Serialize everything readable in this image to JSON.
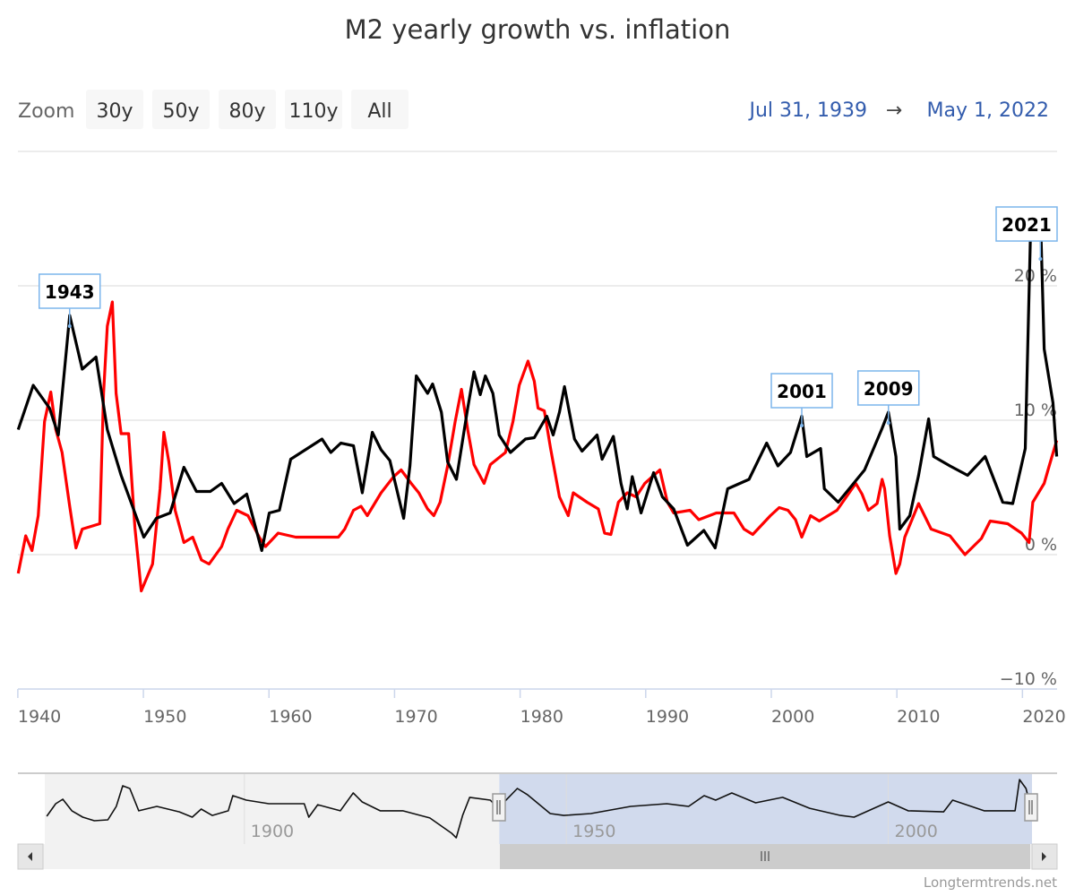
{
  "title": "M2 yearly growth vs. inflation",
  "zoom": {
    "label": "Zoom",
    "buttons": [
      "30y",
      "50y",
      "80y",
      "110y",
      "All"
    ]
  },
  "range": {
    "from": "Jul 31, 1939",
    "arrow": "→",
    "to": "May 1, 2022"
  },
  "credit": "Longtermtrends.net",
  "colors": {
    "m2": "#000000",
    "inflation": "#ff0000",
    "navigator_mask": "#ccd6eb",
    "annotation_border": "#7cb5ec"
  },
  "chart_data": {
    "type": "line",
    "title": "M2 yearly growth vs. inflation",
    "xlim": [
      1939.58,
      2022.33
    ],
    "ylim": [
      -10,
      28
    ],
    "yticks": [
      -10,
      0,
      10,
      20
    ],
    "ytick_labels": [
      "−10 %",
      "0 %",
      "10 %",
      "20 %"
    ],
    "xticks": [
      1940,
      1950,
      1960,
      1970,
      1980,
      1990,
      2000,
      2010,
      2020
    ],
    "xtick_labels": [
      "1940",
      "1950",
      "1960",
      "1970",
      "1980",
      "1990",
      "2000",
      "2010",
      "2020"
    ],
    "grid": true,
    "series": [
      {
        "name": "M2 yearly growth",
        "color": "#000000",
        "points": [
          [
            1939.6,
            9.3
          ],
          [
            1940.8,
            12.6
          ],
          [
            1942.1,
            10.9
          ],
          [
            1942.8,
            8.9
          ],
          [
            1943.7,
            17.8
          ],
          [
            1944.7,
            13.8
          ],
          [
            1945.8,
            14.7
          ],
          [
            1946.7,
            9.3
          ],
          [
            1947.8,
            5.9
          ],
          [
            1949.6,
            1.3
          ],
          [
            1950.6,
            2.7
          ],
          [
            1951.7,
            3.1
          ],
          [
            1952.8,
            6.5
          ],
          [
            1953.8,
            4.7
          ],
          [
            1954.9,
            4.7
          ],
          [
            1955.8,
            5.3
          ],
          [
            1956.8,
            3.8
          ],
          [
            1957.8,
            4.5
          ],
          [
            1959.0,
            0.3
          ],
          [
            1959.6,
            3.1
          ],
          [
            1960.4,
            3.3
          ],
          [
            1961.3,
            7.1
          ],
          [
            1962.8,
            8.0
          ],
          [
            1963.8,
            8.6
          ],
          [
            1964.5,
            7.6
          ],
          [
            1965.3,
            8.3
          ],
          [
            1966.3,
            8.1
          ],
          [
            1967.0,
            4.6
          ],
          [
            1967.8,
            9.1
          ],
          [
            1968.5,
            7.8
          ],
          [
            1969.2,
            7.0
          ],
          [
            1970.3,
            2.7
          ],
          [
            1970.8,
            6.6
          ],
          [
            1971.3,
            13.3
          ],
          [
            1972.2,
            12.0
          ],
          [
            1972.6,
            12.7
          ],
          [
            1973.3,
            10.6
          ],
          [
            1973.8,
            6.9
          ],
          [
            1974.5,
            5.6
          ],
          [
            1975.4,
            10.9
          ],
          [
            1975.9,
            13.6
          ],
          [
            1976.4,
            11.9
          ],
          [
            1976.8,
            13.3
          ],
          [
            1977.4,
            12.0
          ],
          [
            1977.9,
            8.9
          ],
          [
            1978.8,
            7.6
          ],
          [
            1980.0,
            8.6
          ],
          [
            1980.7,
            8.7
          ],
          [
            1981.7,
            10.3
          ],
          [
            1982.2,
            8.9
          ],
          [
            1982.7,
            10.6
          ],
          [
            1983.1,
            12.5
          ],
          [
            1983.9,
            8.6
          ],
          [
            1984.5,
            7.7
          ],
          [
            1985.7,
            8.9
          ],
          [
            1986.1,
            7.1
          ],
          [
            1987.0,
            8.8
          ],
          [
            1987.6,
            5.3
          ],
          [
            1988.1,
            3.4
          ],
          [
            1988.5,
            5.8
          ],
          [
            1989.2,
            3.1
          ],
          [
            1990.2,
            6.1
          ],
          [
            1990.9,
            4.3
          ],
          [
            1991.8,
            3.4
          ],
          [
            1992.9,
            0.7
          ],
          [
            1994.2,
            1.8
          ],
          [
            1995.1,
            0.5
          ],
          [
            1996.1,
            4.9
          ],
          [
            1997.8,
            5.6
          ],
          [
            1999.2,
            8.3
          ],
          [
            2000.1,
            6.6
          ],
          [
            2001.1,
            7.6
          ],
          [
            2002.0,
            10.3
          ],
          [
            2002.4,
            7.3
          ],
          [
            2003.5,
            7.9
          ],
          [
            2003.8,
            4.9
          ],
          [
            2004.9,
            3.9
          ],
          [
            2007.0,
            6.3
          ],
          [
            2008.4,
            9.4
          ],
          [
            2008.9,
            10.6
          ],
          [
            2009.5,
            7.3
          ],
          [
            2009.8,
            1.9
          ],
          [
            2010.6,
            2.9
          ],
          [
            2011.3,
            5.9
          ],
          [
            2012.1,
            10.1
          ],
          [
            2012.5,
            7.3
          ],
          [
            2013.8,
            6.6
          ],
          [
            2015.2,
            5.9
          ],
          [
            2016.6,
            7.3
          ],
          [
            2018.0,
            3.9
          ],
          [
            2018.8,
            3.8
          ],
          [
            2019.8,
            7.9
          ],
          [
            2020.2,
            23.3
          ],
          [
            2021.0,
            25.3
          ],
          [
            2021.3,
            15.3
          ],
          [
            2022.0,
            11.3
          ],
          [
            2022.3,
            7.3
          ]
        ]
      },
      {
        "name": "Inflation",
        "color": "#ff0000",
        "points": [
          [
            1939.6,
            -1.4
          ],
          [
            1940.2,
            1.4
          ],
          [
            1940.7,
            0.3
          ],
          [
            1941.2,
            2.9
          ],
          [
            1941.7,
            9.9
          ],
          [
            1942.2,
            12.1
          ],
          [
            1942.6,
            9.3
          ],
          [
            1943.1,
            7.6
          ],
          [
            1943.7,
            3.6
          ],
          [
            1944.2,
            0.5
          ],
          [
            1944.7,
            1.9
          ],
          [
            1946.1,
            2.3
          ],
          [
            1946.4,
            12.0
          ],
          [
            1946.7,
            17.0
          ],
          [
            1947.1,
            18.8
          ],
          [
            1947.4,
            12.0
          ],
          [
            1947.8,
            9.0
          ],
          [
            1948.4,
            9.0
          ],
          [
            1948.9,
            2.0
          ],
          [
            1949.4,
            -2.7
          ],
          [
            1950.3,
            -0.7
          ],
          [
            1950.9,
            4.9
          ],
          [
            1951.2,
            9.1
          ],
          [
            1951.6,
            6.9
          ],
          [
            1952.1,
            3.3
          ],
          [
            1952.8,
            0.9
          ],
          [
            1953.5,
            1.3
          ],
          [
            1954.2,
            -0.4
          ],
          [
            1954.8,
            -0.7
          ],
          [
            1955.8,
            0.6
          ],
          [
            1956.3,
            1.9
          ],
          [
            1957.0,
            3.3
          ],
          [
            1957.9,
            2.9
          ],
          [
            1958.8,
            1.3
          ],
          [
            1959.3,
            0.6
          ],
          [
            1960.3,
            1.6
          ],
          [
            1961.7,
            1.3
          ],
          [
            1963.5,
            1.3
          ],
          [
            1965.1,
            1.3
          ],
          [
            1965.6,
            1.9
          ],
          [
            1966.3,
            3.3
          ],
          [
            1966.9,
            3.6
          ],
          [
            1967.4,
            2.9
          ],
          [
            1968.5,
            4.6
          ],
          [
            1969.5,
            5.8
          ],
          [
            1970.1,
            6.3
          ],
          [
            1970.9,
            5.3
          ],
          [
            1971.5,
            4.6
          ],
          [
            1972.2,
            3.4
          ],
          [
            1972.7,
            2.9
          ],
          [
            1973.2,
            3.9
          ],
          [
            1973.8,
            6.6
          ],
          [
            1974.4,
            9.9
          ],
          [
            1974.9,
            12.3
          ],
          [
            1975.4,
            9.3
          ],
          [
            1975.9,
            6.7
          ],
          [
            1976.7,
            5.3
          ],
          [
            1977.2,
            6.7
          ],
          [
            1978.4,
            7.6
          ],
          [
            1979.0,
            9.9
          ],
          [
            1979.5,
            12.6
          ],
          [
            1980.2,
            14.4
          ],
          [
            1980.7,
            12.9
          ],
          [
            1981.0,
            10.9
          ],
          [
            1981.5,
            10.7
          ],
          [
            1982.0,
            7.9
          ],
          [
            1982.7,
            4.3
          ],
          [
            1983.4,
            2.9
          ],
          [
            1983.8,
            4.6
          ],
          [
            1984.9,
            3.9
          ],
          [
            1985.8,
            3.4
          ],
          [
            1986.3,
            1.6
          ],
          [
            1986.8,
            1.5
          ],
          [
            1987.4,
            3.9
          ],
          [
            1988.1,
            4.6
          ],
          [
            1988.8,
            4.3
          ],
          [
            1989.5,
            5.3
          ],
          [
            1990.7,
            6.3
          ],
          [
            1991.3,
            3.9
          ],
          [
            1991.8,
            3.1
          ],
          [
            1993.1,
            3.3
          ],
          [
            1993.8,
            2.6
          ],
          [
            1995.2,
            3.1
          ],
          [
            1996.6,
            3.1
          ],
          [
            1997.4,
            1.9
          ],
          [
            1998.1,
            1.5
          ],
          [
            1999.5,
            2.9
          ],
          [
            2000.2,
            3.5
          ],
          [
            2000.9,
            3.3
          ],
          [
            2001.5,
            2.6
          ],
          [
            2002.0,
            1.3
          ],
          [
            2002.7,
            2.9
          ],
          [
            2003.4,
            2.5
          ],
          [
            2004.8,
            3.3
          ],
          [
            2006.3,
            5.3
          ],
          [
            2006.8,
            4.5
          ],
          [
            2007.3,
            3.3
          ],
          [
            2008.0,
            3.8
          ],
          [
            2008.4,
            5.6
          ],
          [
            2008.6,
            4.9
          ],
          [
            2009.0,
            1.4
          ],
          [
            2009.5,
            -1.4
          ],
          [
            2009.8,
            -0.7
          ],
          [
            2010.2,
            1.3
          ],
          [
            2011.3,
            3.8
          ],
          [
            2012.3,
            1.9
          ],
          [
            2013.8,
            1.4
          ],
          [
            2015.0,
            0.0
          ],
          [
            2016.3,
            1.2
          ],
          [
            2017.0,
            2.5
          ],
          [
            2018.4,
            2.3
          ],
          [
            2019.5,
            1.6
          ],
          [
            2020.1,
            0.9
          ],
          [
            2020.4,
            3.9
          ],
          [
            2021.3,
            5.3
          ],
          [
            2021.7,
            6.6
          ],
          [
            2022.3,
            8.5
          ]
        ]
      }
    ],
    "annotations": [
      {
        "label": "1943",
        "x": 1943.7,
        "y": 17.0
      },
      {
        "label": "2001",
        "x": 2002.0,
        "y": 9.6
      },
      {
        "label": "2009",
        "x": 2008.9,
        "y": 9.8
      },
      {
        "label": "2021",
        "x": 2021.0,
        "y": 22.0
      }
    ],
    "navigator": {
      "xlim": [
        1869,
        2022.33
      ],
      "xticks": [
        1900,
        1950,
        2000
      ],
      "xtick_labels": [
        "1900",
        "1950",
        "2000"
      ],
      "selected_range": [
        1939.58,
        2022.33
      ],
      "points": [
        [
          1869.3,
          2.1
        ],
        [
          1870.7,
          9.5
        ],
        [
          1871.8,
          12.1
        ],
        [
          1873.2,
          5.3
        ],
        [
          1874.9,
          1.6
        ],
        [
          1876.7,
          -0.5
        ],
        [
          1878.8,
          0
        ],
        [
          1880.1,
          7.9
        ],
        [
          1881.1,
          20
        ],
        [
          1882.2,
          18.4
        ],
        [
          1883.6,
          5.3
        ],
        [
          1886.4,
          7.9
        ],
        [
          1889.9,
          4.7
        ],
        [
          1891.9,
          1.6
        ],
        [
          1893.3,
          6.3
        ],
        [
          1895,
          2.6
        ],
        [
          1897.5,
          5.3
        ],
        [
          1898.2,
          14.2
        ],
        [
          1900.3,
          11.6
        ],
        [
          1903.8,
          9.5
        ],
        [
          1909.3,
          9.5
        ],
        [
          1910,
          1.6
        ],
        [
          1911.4,
          8.9
        ],
        [
          1914.9,
          5.3
        ],
        [
          1916.9,
          15.8
        ],
        [
          1918.3,
          10.5
        ],
        [
          1921.1,
          5.3
        ],
        [
          1924.6,
          5.3
        ],
        [
          1928.8,
          1.1
        ],
        [
          1932.2,
          -7.9
        ],
        [
          1932.9,
          -10.5
        ],
        [
          1933.9,
          2.6
        ],
        [
          1935,
          13.2
        ],
        [
          1938.2,
          11.6
        ],
        [
          1939.4,
          6.8
        ],
        [
          1942.4,
          18.4
        ],
        [
          1944,
          14.7
        ],
        [
          1947.5,
          3.7
        ],
        [
          1949.6,
          2.6
        ],
        [
          1953.8,
          3.7
        ],
        [
          1960,
          7.9
        ],
        [
          1965.6,
          9.5
        ],
        [
          1969,
          7.9
        ],
        [
          1971.4,
          14.2
        ],
        [
          1973.2,
          11.6
        ],
        [
          1975.7,
          15.8
        ],
        [
          1979.4,
          10
        ],
        [
          1983.6,
          13.2
        ],
        [
          1987.8,
          6.8
        ],
        [
          1992.6,
          2.6
        ],
        [
          1994.7,
          1.6
        ],
        [
          2000,
          10.5
        ],
        [
          2003.1,
          5.3
        ],
        [
          2008.6,
          4.7
        ],
        [
          2010,
          11.6
        ],
        [
          2014.9,
          5.3
        ],
        [
          2019.7,
          5.3
        ],
        [
          2020.4,
          23.7
        ],
        [
          2021.4,
          18.4
        ],
        [
          2022.1,
          7.9
        ]
      ]
    }
  }
}
